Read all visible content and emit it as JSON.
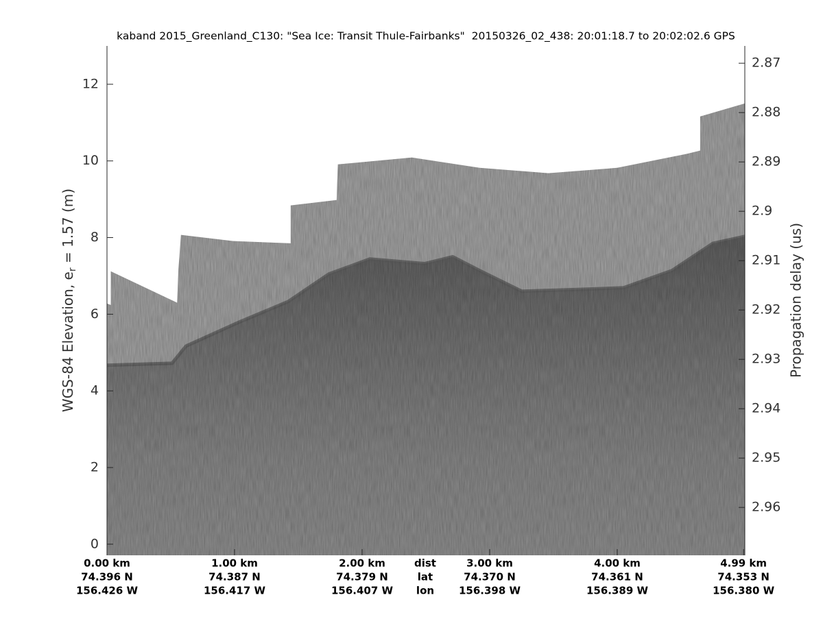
{
  "chart_data": {
    "type": "echogram",
    "title": "kaband 2015_Greenland_C130: \"Sea Ice: Transit Thule-Fairbanks\"  20150326_02_438: 20:01:18.7 to 20:02:02.6 GPS",
    "ylabel": [
      "WGS-84 Elevation, e",
      "r",
      " = 1.57 (m)"
    ],
    "y2label": "Propagation delay (us)",
    "xlim": [
      0,
      5
    ],
    "ylim": [
      -0.29,
      13.0
    ],
    "y2lim": [
      2.8665,
      2.9697
    ],
    "yticks": [
      0,
      2,
      4,
      6,
      8,
      10,
      12
    ],
    "y2ticks": [
      2.87,
      2.88,
      2.89,
      2.9,
      2.91,
      2.92,
      2.93,
      2.94,
      2.95,
      2.96
    ],
    "xticks": [
      {
        "value": 0,
        "label": "0.00 km"
      },
      {
        "value": 1,
        "label": "1.00 km"
      },
      {
        "value": 2,
        "label": "2.00 km"
      },
      {
        "value": 3,
        "label": "3.00 km"
      },
      {
        "value": 4,
        "label": "4.00 km"
      },
      {
        "value": 4.99,
        "label": "4.99 km"
      }
    ],
    "lat_labels": [
      "74.396 N",
      "74.387 N",
      "74.379 N",
      "74.370 N",
      "74.361 N",
      "74.353 N"
    ],
    "lon_labels": [
      "156.426 W",
      "156.417 W",
      "156.407 W",
      "156.398 W",
      "156.389 W",
      "156.380 W"
    ],
    "row_labels": [
      "dist",
      "lat",
      "lon"
    ],
    "series": [
      {
        "color": "#9b9b9b",
        "x": [
          0,
          0.03,
          0.03,
          0.55,
          0.56,
          0.58,
          0.99,
          1.44,
          1.44,
          1.8,
          1.81,
          2.39,
          2.92,
          3.46,
          4.0,
          4.54,
          4.65,
          4.65,
          5.0
        ],
        "values": [
          6.28,
          6.24,
          7.12,
          6.3,
          7.17,
          8.07,
          7.91,
          7.85,
          8.84,
          8.98,
          9.91,
          10.09,
          9.82,
          9.68,
          9.82,
          10.18,
          10.27,
          11.16,
          11.5
        ]
      },
      {
        "color": "#5c5c5c",
        "x": [
          0,
          0.51,
          0.62,
          1.04,
          1.42,
          1.74,
          2.06,
          2.49,
          2.71,
          2.92,
          3.25,
          3.73,
          4.05,
          4.43,
          4.75,
          5.0
        ],
        "values": [
          4.67,
          4.72,
          5.17,
          5.8,
          6.33,
          7.05,
          7.44,
          7.32,
          7.5,
          7.14,
          6.6,
          6.65,
          6.69,
          7.14,
          7.85,
          8.03
        ]
      }
    ]
  }
}
